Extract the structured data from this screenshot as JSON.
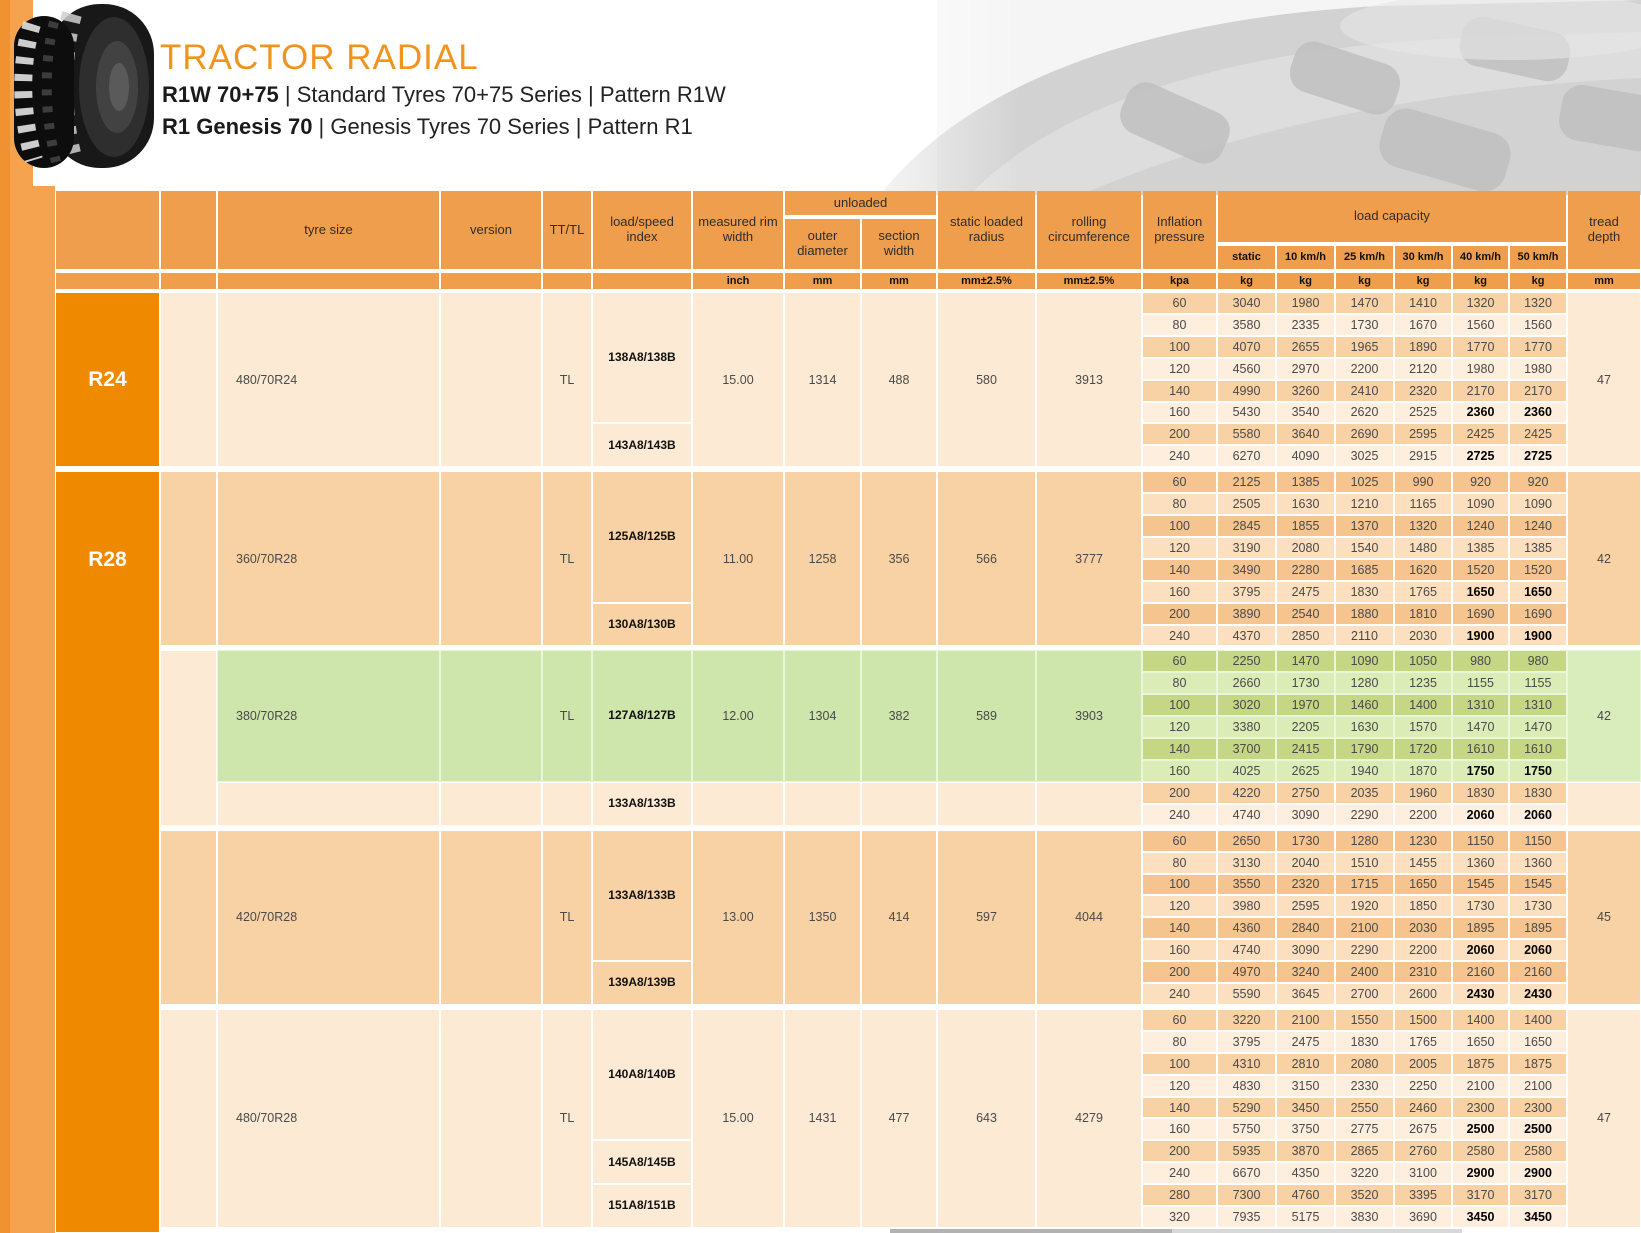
{
  "branding": {
    "title": "TRACTOR RADIAL",
    "subtitle1_bold": "R1W 70+75",
    "subtitle1_rest": " | Standard Tyres 70+75 Series | Pattern R1W",
    "subtitle2_bold": "R1 Genesis 70",
    "subtitle2_rest": " | Genesis Tyres 70 Series | Pattern R1"
  },
  "colors": {
    "title_orange": "#f0941e",
    "header_orange": "#ee9e4c",
    "orange_dark": "#ee8900",
    "orange_mid": "#f6a34f",
    "orange_edge": "#f0922f",
    "palettes": {
      "light": {
        "base": "#fcead4",
        "odd": "#f8d2a4",
        "even": "#fdeedd"
      },
      "dark": {
        "base": "#f8d2a4",
        "odd": "#f5c48f",
        "even": "#fbdfbf"
      },
      "green": {
        "base": "#cee5ab",
        "odd": "#c5d685",
        "even": "#dcecb6",
        "side": "#d9ecbc",
        "underlay": "#eaf6da"
      }
    }
  },
  "table": {
    "headers": {
      "tyre_size": "tyre size",
      "version": "version",
      "tt_tl": "TT/TL",
      "load_speed_index": "load/speed index",
      "measured_rim_width": "measured rim width",
      "unloaded": "unloaded",
      "outer_diameter": "outer diameter",
      "section_width": "section width",
      "static_loaded_radius": "static loaded radius",
      "rolling_circumference": "rolling circumference",
      "inflation_pressure": "Inflation pressure",
      "load_capacity": "load capacity",
      "tread_depth": "tread depth",
      "speeds": [
        "static",
        "10 km/h",
        "25 km/h",
        "30 km/h",
        "40 km/h",
        "50 km/h"
      ]
    },
    "units": {
      "rim": "inch",
      "outer": "mm",
      "section": "mm",
      "static_radius": "mm±2.5%",
      "rolling": "mm±2.5%",
      "pressure": "kpa",
      "load": "kg",
      "tread": "mm"
    },
    "groups": [
      {
        "wheel": "R24",
        "tyre_size": "480/70R24",
        "version": "",
        "tt_tl": "TL",
        "indexes": [
          {
            "label": "138A8/138B",
            "from": 0,
            "to": 5
          },
          {
            "label": "143A8/143B",
            "from": 6,
            "to": 7
          }
        ],
        "measured_rim_width": "15.00",
        "outer_diameter": "1314",
        "section_width": "488",
        "static_loaded_radius": "580",
        "rolling_circumference": "3913",
        "tread_depth": "47",
        "palette": "light",
        "rows": [
          {
            "pressure": "60",
            "values": [
              "3040",
              "1980",
              "1470",
              "1410",
              "1320",
              "1320"
            ],
            "bold": []
          },
          {
            "pressure": "80",
            "values": [
              "3580",
              "2335",
              "1730",
              "1670",
              "1560",
              "1560"
            ],
            "bold": []
          },
          {
            "pressure": "100",
            "values": [
              "4070",
              "2655",
              "1965",
              "1890",
              "1770",
              "1770"
            ],
            "bold": []
          },
          {
            "pressure": "120",
            "values": [
              "4560",
              "2970",
              "2200",
              "2120",
              "1980",
              "1980"
            ],
            "bold": []
          },
          {
            "pressure": "140",
            "values": [
              "4990",
              "3260",
              "2410",
              "2320",
              "2170",
              "2170"
            ],
            "bold": []
          },
          {
            "pressure": "160",
            "values": [
              "5430",
              "3540",
              "2620",
              "2525",
              "2360",
              "2360"
            ],
            "bold": [
              4,
              5
            ]
          },
          {
            "pressure": "200",
            "values": [
              "5580",
              "3640",
              "2690",
              "2595",
              "2425",
              "2425"
            ],
            "bold": []
          },
          {
            "pressure": "240",
            "values": [
              "6270",
              "4090",
              "3025",
              "2915",
              "2725",
              "2725"
            ],
            "bold": [
              4,
              5
            ]
          }
        ]
      },
      {
        "wheel": "R28",
        "tyre_size": "360/70R28",
        "version": "",
        "tt_tl": "TL",
        "indexes": [
          {
            "label": "125A8/125B",
            "from": 0,
            "to": 5
          },
          {
            "label": "130A8/130B",
            "from": 6,
            "to": 7
          }
        ],
        "measured_rim_width": "11.00",
        "outer_diameter": "1258",
        "section_width": "356",
        "static_loaded_radius": "566",
        "rolling_circumference": "3777",
        "tread_depth": "42",
        "palette": "dark",
        "rows": [
          {
            "pressure": "60",
            "values": [
              "2125",
              "1385",
              "1025",
              "990",
              "920",
              "920"
            ],
            "bold": []
          },
          {
            "pressure": "80",
            "values": [
              "2505",
              "1630",
              "1210",
              "1165",
              "1090",
              "1090"
            ],
            "bold": []
          },
          {
            "pressure": "100",
            "values": [
              "2845",
              "1855",
              "1370",
              "1320",
              "1240",
              "1240"
            ],
            "bold": []
          },
          {
            "pressure": "120",
            "values": [
              "3190",
              "2080",
              "1540",
              "1480",
              "1385",
              "1385"
            ],
            "bold": []
          },
          {
            "pressure": "140",
            "values": [
              "3490",
              "2280",
              "1685",
              "1620",
              "1520",
              "1520"
            ],
            "bold": []
          },
          {
            "pressure": "160",
            "values": [
              "3795",
              "2475",
              "1830",
              "1765",
              "1650",
              "1650"
            ],
            "bold": [
              4,
              5
            ]
          },
          {
            "pressure": "200",
            "values": [
              "3890",
              "2540",
              "1880",
              "1810",
              "1690",
              "1690"
            ],
            "bold": []
          },
          {
            "pressure": "240",
            "values": [
              "4370",
              "2850",
              "2110",
              "2030",
              "1900",
              "1900"
            ],
            "bold": [
              4,
              5
            ]
          }
        ]
      },
      {
        "wheel": null,
        "tyre_size": "380/70R28",
        "version": "",
        "tt_tl": "TL",
        "indexes": [
          {
            "label": "127A8/127B",
            "from": 0,
            "to": 5
          },
          {
            "label": "133A8/133B",
            "from": 6,
            "to": 7
          }
        ],
        "measured_rim_width": "12.00",
        "outer_diameter": "1304",
        "section_width": "382",
        "static_loaded_radius": "589",
        "rolling_circumference": "3903",
        "tread_depth": "42",
        "palette": "light",
        "highlight_rows": [
          0,
          5
        ],
        "rows": [
          {
            "pressure": "60",
            "values": [
              "2250",
              "1470",
              "1090",
              "1050",
              "980",
              "980"
            ],
            "bold": []
          },
          {
            "pressure": "80",
            "values": [
              "2660",
              "1730",
              "1280",
              "1235",
              "1155",
              "1155"
            ],
            "bold": []
          },
          {
            "pressure": "100",
            "values": [
              "3020",
              "1970",
              "1460",
              "1400",
              "1310",
              "1310"
            ],
            "bold": []
          },
          {
            "pressure": "120",
            "values": [
              "3380",
              "2205",
              "1630",
              "1570",
              "1470",
              "1470"
            ],
            "bold": []
          },
          {
            "pressure": "140",
            "values": [
              "3700",
              "2415",
              "1790",
              "1720",
              "1610",
              "1610"
            ],
            "bold": []
          },
          {
            "pressure": "160",
            "values": [
              "4025",
              "2625",
              "1940",
              "1870",
              "1750",
              "1750"
            ],
            "bold": [
              4,
              5
            ]
          },
          {
            "pressure": "200",
            "values": [
              "4220",
              "2750",
              "2035",
              "1960",
              "1830",
              "1830"
            ],
            "bold": []
          },
          {
            "pressure": "240",
            "values": [
              "4740",
              "3090",
              "2290",
              "2200",
              "2060",
              "2060"
            ],
            "bold": [
              4,
              5
            ]
          }
        ]
      },
      {
        "wheel": null,
        "tyre_size": "420/70R28",
        "version": "",
        "tt_tl": "TL",
        "indexes": [
          {
            "label": "133A8/133B",
            "from": 0,
            "to": 5
          },
          {
            "label": "139A8/139B",
            "from": 6,
            "to": 7
          }
        ],
        "measured_rim_width": "13.00",
        "outer_diameter": "1350",
        "section_width": "414",
        "static_loaded_radius": "597",
        "rolling_circumference": "4044",
        "tread_depth": "45",
        "palette": "dark",
        "rows": [
          {
            "pressure": "60",
            "values": [
              "2650",
              "1730",
              "1280",
              "1230",
              "1150",
              "1150"
            ],
            "bold": []
          },
          {
            "pressure": "80",
            "values": [
              "3130",
              "2040",
              "1510",
              "1455",
              "1360",
              "1360"
            ],
            "bold": []
          },
          {
            "pressure": "100",
            "values": [
              "3550",
              "2320",
              "1715",
              "1650",
              "1545",
              "1545"
            ],
            "bold": []
          },
          {
            "pressure": "120",
            "values": [
              "3980",
              "2595",
              "1920",
              "1850",
              "1730",
              "1730"
            ],
            "bold": []
          },
          {
            "pressure": "140",
            "values": [
              "4360",
              "2840",
              "2100",
              "2030",
              "1895",
              "1895"
            ],
            "bold": []
          },
          {
            "pressure": "160",
            "values": [
              "4740",
              "3090",
              "2290",
              "2200",
              "2060",
              "2060"
            ],
            "bold": [
              4,
              5
            ]
          },
          {
            "pressure": "200",
            "values": [
              "4970",
              "3240",
              "2400",
              "2310",
              "2160",
              "2160"
            ],
            "bold": []
          },
          {
            "pressure": "240",
            "values": [
              "5590",
              "3645",
              "2700",
              "2600",
              "2430",
              "2430"
            ],
            "bold": [
              4,
              5
            ]
          }
        ]
      },
      {
        "wheel": null,
        "tyre_size": "480/70R28",
        "version": "",
        "tt_tl": "TL",
        "indexes": [
          {
            "label": "140A8/140B",
            "from": 0,
            "to": 5
          },
          {
            "label": "145A8/145B",
            "from": 6,
            "to": 7
          },
          {
            "label": "151A8/151B",
            "from": 8,
            "to": 9
          }
        ],
        "measured_rim_width": "15.00",
        "outer_diameter": "1431",
        "section_width": "477",
        "static_loaded_radius": "643",
        "rolling_circumference": "4279",
        "tread_depth": "47",
        "palette": "light",
        "rows": [
          {
            "pressure": "60",
            "values": [
              "3220",
              "2100",
              "1550",
              "1500",
              "1400",
              "1400"
            ],
            "bold": []
          },
          {
            "pressure": "80",
            "values": [
              "3795",
              "2475",
              "1830",
              "1765",
              "1650",
              "1650"
            ],
            "bold": []
          },
          {
            "pressure": "100",
            "values": [
              "4310",
              "2810",
              "2080",
              "2005",
              "1875",
              "1875"
            ],
            "bold": []
          },
          {
            "pressure": "120",
            "values": [
              "4830",
              "3150",
              "2330",
              "2250",
              "2100",
              "2100"
            ],
            "bold": []
          },
          {
            "pressure": "140",
            "values": [
              "5290",
              "3450",
              "2550",
              "2460",
              "2300",
              "2300"
            ],
            "bold": []
          },
          {
            "pressure": "160",
            "values": [
              "5750",
              "3750",
              "2775",
              "2675",
              "2500",
              "2500"
            ],
            "bold": [
              4,
              5
            ]
          },
          {
            "pressure": "200",
            "values": [
              "5935",
              "3870",
              "2865",
              "2760",
              "2580",
              "2580"
            ],
            "bold": []
          },
          {
            "pressure": "240",
            "values": [
              "6670",
              "4350",
              "3220",
              "3100",
              "2900",
              "2900"
            ],
            "bold": [
              4,
              5
            ]
          },
          {
            "pressure": "280",
            "values": [
              "7300",
              "4760",
              "3520",
              "3395",
              "3170",
              "3170"
            ],
            "bold": []
          },
          {
            "pressure": "320",
            "values": [
              "7935",
              "5175",
              "3830",
              "3690",
              "3450",
              "3450"
            ],
            "bold": [
              4,
              5
            ]
          }
        ]
      }
    ]
  }
}
